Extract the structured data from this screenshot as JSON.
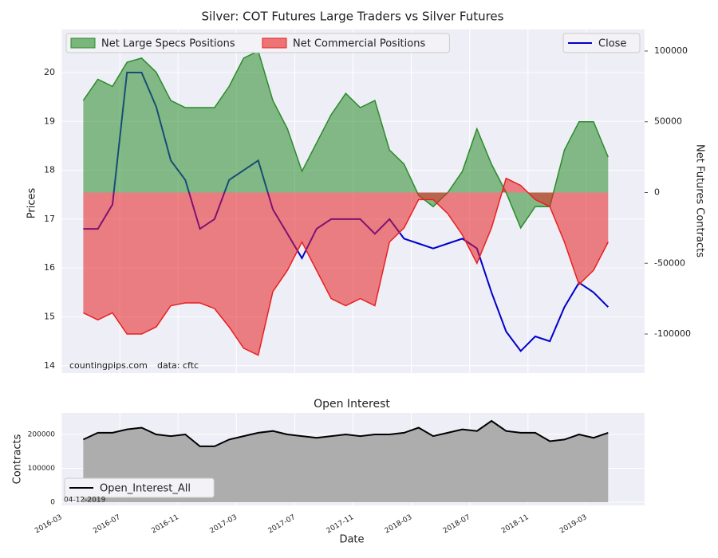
{
  "chart_data": [
    {
      "type": "line",
      "title": "Silver: COT Futures Large Traders vs Silver Futures",
      "y_label": "Prices",
      "y2_label": "Net Futures Contracts",
      "annotations": [
        "countingpips.com",
        "data: cftc"
      ],
      "x": [
        "2016-04",
        "2016-05",
        "2016-06",
        "2016-07",
        "2016-08",
        "2016-09",
        "2016-10",
        "2016-11",
        "2016-12",
        "2017-01",
        "2017-02",
        "2017-03",
        "2017-04",
        "2017-05",
        "2017-06",
        "2017-07",
        "2017-08",
        "2017-09",
        "2017-10",
        "2017-11",
        "2017-12",
        "2018-01",
        "2018-02",
        "2018-03",
        "2018-04",
        "2018-05",
        "2018-06",
        "2018-07",
        "2018-08",
        "2018-09",
        "2018-10",
        "2018-11",
        "2018-12",
        "2019-01",
        "2019-02",
        "2019-03",
        "2019-04"
      ],
      "xlim": [
        "2016-03",
        "2019-07"
      ],
      "ylim": [
        13.85,
        20.88
      ],
      "yticks": [
        14,
        15,
        16,
        17,
        18,
        19,
        20
      ],
      "y2lim": [
        -127600,
        115200
      ],
      "y2ticks": [
        -100000,
        -50000,
        0,
        50000,
        100000
      ],
      "grid": true,
      "series": [
        {
          "name": "Net Large Specs Positions",
          "color": "#2a8c2a",
          "fill": true,
          "axis": "y2",
          "legend": "upper left",
          "values": [
            65000,
            80000,
            75000,
            92000,
            95000,
            85000,
            65000,
            60000,
            60000,
            60000,
            75000,
            95000,
            100000,
            65000,
            45000,
            15000,
            35000,
            55000,
            70000,
            60000,
            65000,
            30000,
            20000,
            -2000,
            -10000,
            0,
            15000,
            45000,
            20000,
            0,
            -25000,
            -10000,
            -10000,
            30000,
            50000,
            50000,
            25000
          ]
        },
        {
          "name": "Net Commercial Positions",
          "color": "#e82020",
          "fill": true,
          "axis": "y2",
          "legend": "upper left",
          "values": [
            -85000,
            -90000,
            -85000,
            -100000,
            -100000,
            -95000,
            -80000,
            -78000,
            -78000,
            -82000,
            -95000,
            -110000,
            -115000,
            -70000,
            -55000,
            -35000,
            -55000,
            -75000,
            -80000,
            -75000,
            -80000,
            -35000,
            -25000,
            -5000,
            -5000,
            -15000,
            -30000,
            -50000,
            -25000,
            10000,
            5000,
            -5000,
            -10000,
            -35000,
            -65000,
            -55000,
            -35000
          ]
        },
        {
          "name": "Close",
          "color": "#0000cc",
          "fill": false,
          "axis": "y",
          "legend": "upper right",
          "values": [
            16.8,
            16.8,
            17.3,
            20.0,
            20.0,
            19.3,
            18.2,
            17.8,
            16.8,
            17.0,
            17.8,
            18.0,
            18.2,
            17.2,
            16.7,
            16.2,
            16.8,
            17.0,
            17.0,
            17.0,
            16.7,
            17.0,
            16.6,
            16.5,
            16.4,
            16.5,
            16.6,
            16.4,
            15.5,
            14.7,
            14.3,
            14.6,
            14.5,
            15.2,
            15.7,
            15.5,
            15.2
          ]
        }
      ]
    },
    {
      "type": "line",
      "title": "Open Interest",
      "x_label": "Date",
      "y_label": "Contracts",
      "annotations": [
        "04-12-2019"
      ],
      "x": [
        "2016-04",
        "2016-05",
        "2016-06",
        "2016-07",
        "2016-08",
        "2016-09",
        "2016-10",
        "2016-11",
        "2016-12",
        "2017-01",
        "2017-02",
        "2017-03",
        "2017-04",
        "2017-05",
        "2017-06",
        "2017-07",
        "2017-08",
        "2017-09",
        "2017-10",
        "2017-11",
        "2017-12",
        "2018-01",
        "2018-02",
        "2018-03",
        "2018-04",
        "2018-05",
        "2018-06",
        "2018-07",
        "2018-08",
        "2018-09",
        "2018-10",
        "2018-11",
        "2018-12",
        "2019-01",
        "2019-02",
        "2019-03",
        "2019-04"
      ],
      "xlim": [
        "2016-03",
        "2019-07"
      ],
      "xticks": [
        "2016-03",
        "2016-07",
        "2016-11",
        "2017-03",
        "2017-07",
        "2017-11",
        "2018-03",
        "2018-07",
        "2018-11",
        "2019-03"
      ],
      "ylim": [
        -9400,
        263500
      ],
      "yticks": [
        0,
        100000,
        200000
      ],
      "grid": true,
      "series": [
        {
          "name": "Open_Interest_All",
          "color": "#000000",
          "fill": true,
          "fill_color": "#adadad",
          "legend": "lower left",
          "values": [
            185000,
            205000,
            205000,
            215000,
            220000,
            200000,
            195000,
            200000,
            165000,
            165000,
            185000,
            195000,
            205000,
            210000,
            200000,
            195000,
            190000,
            195000,
            200000,
            195000,
            200000,
            200000,
            205000,
            220000,
            195000,
            205000,
            215000,
            210000,
            240000,
            210000,
            205000,
            205000,
            180000,
            185000,
            200000,
            190000,
            205000
          ]
        }
      ]
    }
  ]
}
